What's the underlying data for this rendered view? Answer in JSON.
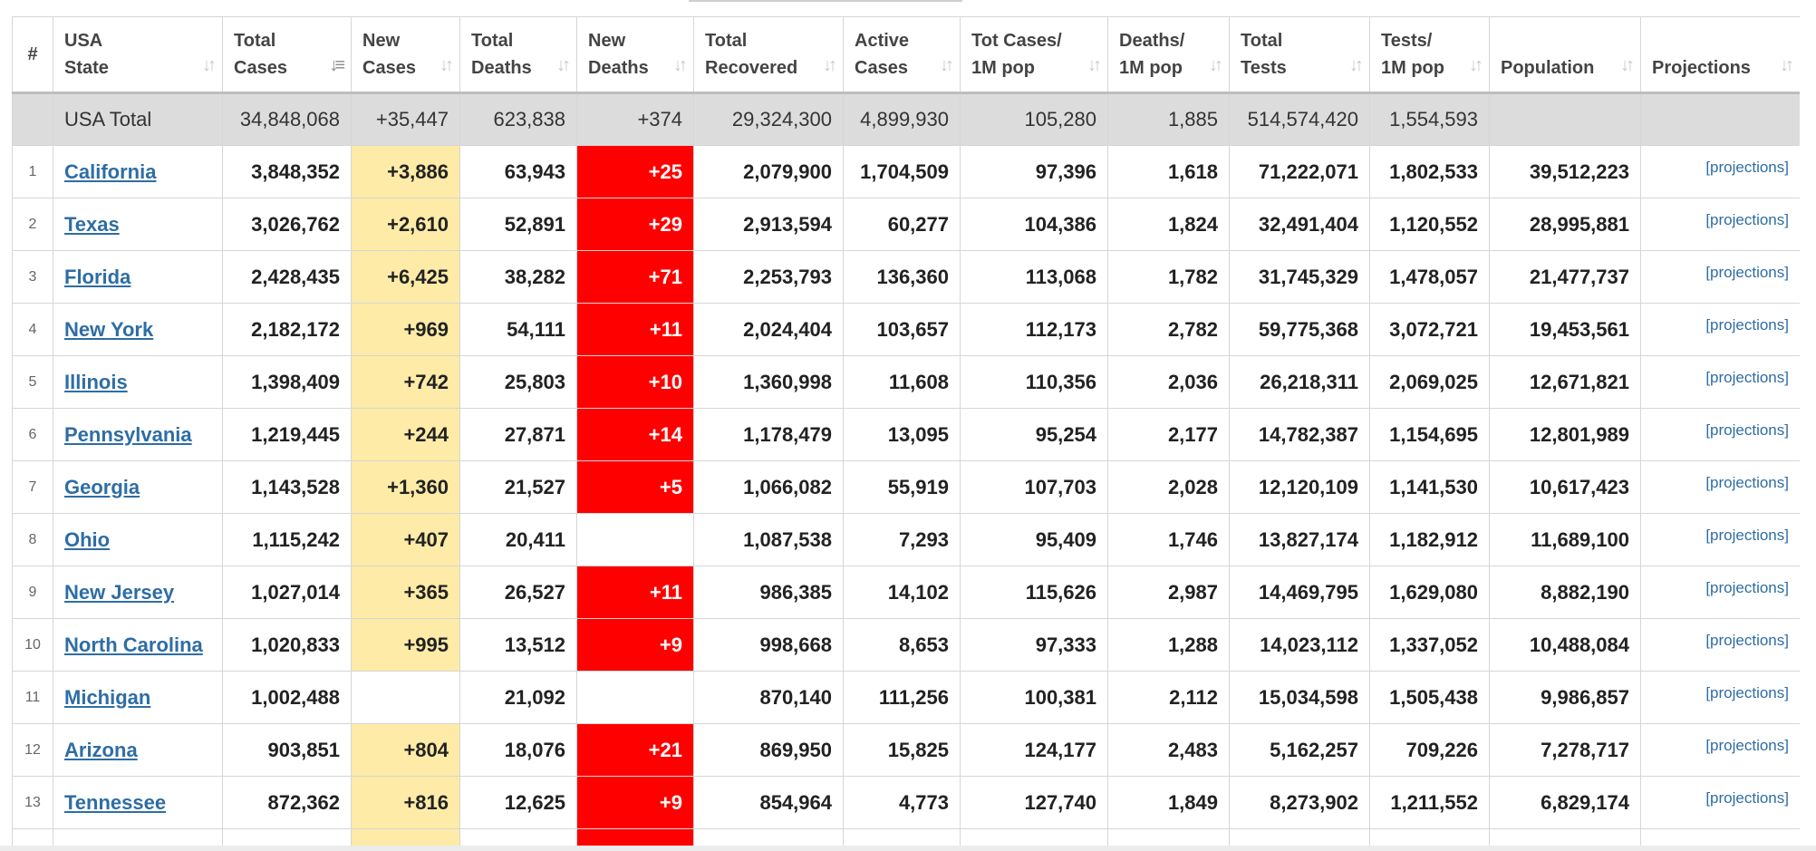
{
  "headers": {
    "idx": "#",
    "state_l1": "USA",
    "state_l2": "State",
    "total_cases_l1": "Total",
    "total_cases_l2": "Cases",
    "new_cases_l1": "New",
    "new_cases_l2": "Cases",
    "total_deaths_l1": "Total",
    "total_deaths_l2": "Deaths",
    "new_deaths_l1": "New",
    "new_deaths_l2": "Deaths",
    "total_recovered_l1": "Total",
    "total_recovered_l2": "Recovered",
    "active_cases_l1": "Active",
    "active_cases_l2": "Cases",
    "tot_cases_1m_l1": "Tot Cases/",
    "tot_cases_1m_l2": "1M pop",
    "deaths_1m_l1": "Deaths/",
    "deaths_1m_l2": "1M pop",
    "total_tests_l1": "Total",
    "total_tests_l2": "Tests",
    "tests_1m_l1": "Tests/",
    "tests_1m_l2": "1M pop",
    "population": "Population",
    "projections": "Projections"
  },
  "sort_icons": {
    "inactive": "sort-arrows-icon",
    "active": "sort-descending-icon"
  },
  "colors": {
    "new_cases_bg": "#fdeba7",
    "new_deaths_bg": "#ff0000",
    "total_row_bg": "#dcdcdc",
    "link": "#2e6da4"
  },
  "total": {
    "name": "USA Total",
    "total_cases": "34,848,068",
    "new_cases": "+35,447",
    "total_deaths": "623,838",
    "new_deaths": "+374",
    "total_recovered": "29,324,300",
    "active_cases": "4,899,930",
    "tot_cases_1m": "105,280",
    "deaths_1m": "1,885",
    "total_tests": "514,574,420",
    "tests_1m": "1,554,593",
    "population": "",
    "projections": ""
  },
  "projections_link": "[projections]",
  "rows": [
    {
      "idx": "1",
      "state": "California",
      "total_cases": "3,848,352",
      "new_cases": "+3,886",
      "total_deaths": "63,943",
      "new_deaths": "+25",
      "total_recovered": "2,079,900",
      "active_cases": "1,704,509",
      "tot_cases_1m": "97,396",
      "deaths_1m": "1,618",
      "total_tests": "71,222,071",
      "tests_1m": "1,802,533",
      "population": "39,512,223"
    },
    {
      "idx": "2",
      "state": "Texas",
      "total_cases": "3,026,762",
      "new_cases": "+2,610",
      "total_deaths": "52,891",
      "new_deaths": "+29",
      "total_recovered": "2,913,594",
      "active_cases": "60,277",
      "tot_cases_1m": "104,386",
      "deaths_1m": "1,824",
      "total_tests": "32,491,404",
      "tests_1m": "1,120,552",
      "population": "28,995,881"
    },
    {
      "idx": "3",
      "state": "Florida",
      "total_cases": "2,428,435",
      "new_cases": "+6,425",
      "total_deaths": "38,282",
      "new_deaths": "+71",
      "total_recovered": "2,253,793",
      "active_cases": "136,360",
      "tot_cases_1m": "113,068",
      "deaths_1m": "1,782",
      "total_tests": "31,745,329",
      "tests_1m": "1,478,057",
      "population": "21,477,737"
    },
    {
      "idx": "4",
      "state": "New York",
      "total_cases": "2,182,172",
      "new_cases": "+969",
      "total_deaths": "54,111",
      "new_deaths": "+11",
      "total_recovered": "2,024,404",
      "active_cases": "103,657",
      "tot_cases_1m": "112,173",
      "deaths_1m": "2,782",
      "total_tests": "59,775,368",
      "tests_1m": "3,072,721",
      "population": "19,453,561"
    },
    {
      "idx": "5",
      "state": "Illinois",
      "total_cases": "1,398,409",
      "new_cases": "+742",
      "total_deaths": "25,803",
      "new_deaths": "+10",
      "total_recovered": "1,360,998",
      "active_cases": "11,608",
      "tot_cases_1m": "110,356",
      "deaths_1m": "2,036",
      "total_tests": "26,218,311",
      "tests_1m": "2,069,025",
      "population": "12,671,821"
    },
    {
      "idx": "6",
      "state": "Pennsylvania",
      "total_cases": "1,219,445",
      "new_cases": "+244",
      "total_deaths": "27,871",
      "new_deaths": "+14",
      "total_recovered": "1,178,479",
      "active_cases": "13,095",
      "tot_cases_1m": "95,254",
      "deaths_1m": "2,177",
      "total_tests": "14,782,387",
      "tests_1m": "1,154,695",
      "population": "12,801,989"
    },
    {
      "idx": "7",
      "state": "Georgia",
      "total_cases": "1,143,528",
      "new_cases": "+1,360",
      "total_deaths": "21,527",
      "new_deaths": "+5",
      "total_recovered": "1,066,082",
      "active_cases": "55,919",
      "tot_cases_1m": "107,703",
      "deaths_1m": "2,028",
      "total_tests": "12,120,109",
      "tests_1m": "1,141,530",
      "population": "10,617,423"
    },
    {
      "idx": "8",
      "state": "Ohio",
      "total_cases": "1,115,242",
      "new_cases": "+407",
      "total_deaths": "20,411",
      "new_deaths": "",
      "total_recovered": "1,087,538",
      "active_cases": "7,293",
      "tot_cases_1m": "95,409",
      "deaths_1m": "1,746",
      "total_tests": "13,827,174",
      "tests_1m": "1,182,912",
      "population": "11,689,100"
    },
    {
      "idx": "9",
      "state": "New Jersey",
      "total_cases": "1,027,014",
      "new_cases": "+365",
      "total_deaths": "26,527",
      "new_deaths": "+11",
      "total_recovered": "986,385",
      "active_cases": "14,102",
      "tot_cases_1m": "115,626",
      "deaths_1m": "2,987",
      "total_tests": "14,469,795",
      "tests_1m": "1,629,080",
      "population": "8,882,190"
    },
    {
      "idx": "10",
      "state": "North Carolina",
      "total_cases": "1,020,833",
      "new_cases": "+995",
      "total_deaths": "13,512",
      "new_deaths": "+9",
      "total_recovered": "998,668",
      "active_cases": "8,653",
      "tot_cases_1m": "97,333",
      "deaths_1m": "1,288",
      "total_tests": "14,023,112",
      "tests_1m": "1,337,052",
      "population": "10,488,084"
    },
    {
      "idx": "11",
      "state": "Michigan",
      "total_cases": "1,002,488",
      "new_cases": "",
      "total_deaths": "21,092",
      "new_deaths": "",
      "total_recovered": "870,140",
      "active_cases": "111,256",
      "tot_cases_1m": "100,381",
      "deaths_1m": "2,112",
      "total_tests": "15,034,598",
      "tests_1m": "1,505,438",
      "population": "9,986,857"
    },
    {
      "idx": "12",
      "state": "Arizona",
      "total_cases": "903,851",
      "new_cases": "+804",
      "total_deaths": "18,076",
      "new_deaths": "+21",
      "total_recovered": "869,950",
      "active_cases": "15,825",
      "tot_cases_1m": "124,177",
      "deaths_1m": "2,483",
      "total_tests": "5,162,257",
      "tests_1m": "709,226",
      "population": "7,278,717"
    },
    {
      "idx": "13",
      "state": "Tennessee",
      "total_cases": "872,362",
      "new_cases": "+816",
      "total_deaths": "12,625",
      "new_deaths": "+9",
      "total_recovered": "854,964",
      "active_cases": "4,773",
      "tot_cases_1m": "127,740",
      "deaths_1m": "1,849",
      "total_tests": "8,273,902",
      "tests_1m": "1,211,552",
      "population": "6,829,174"
    },
    {
      "idx": "",
      "state": "",
      "total_cases": "",
      "new_cases": "",
      "total_deaths": "",
      "new_deaths": "",
      "total_recovered": "",
      "active_cases": "",
      "tot_cases_1m": "",
      "deaths_1m": "",
      "total_tests": "",
      "tests_1m": "",
      "population": ""
    }
  ]
}
